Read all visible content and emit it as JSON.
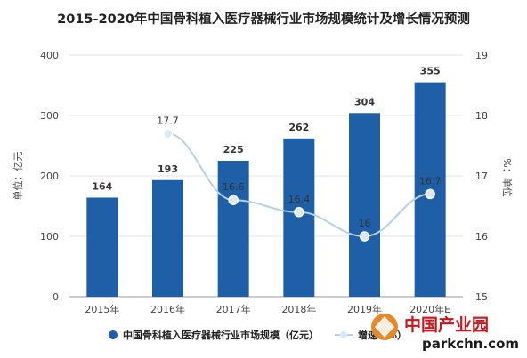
{
  "chart_data": {
    "type": "bar+line",
    "title": "2015-2020年中国骨科植入医疗器械行业市场规模统计及增长情况预测",
    "categories": [
      "2015年",
      "2016年",
      "2017年",
      "2018年",
      "2019年",
      "2020年E"
    ],
    "series": [
      {
        "name": "中国骨科植入医疗器械行业市场规模（亿元）",
        "type": "bar",
        "axis": "left",
        "values": [
          164,
          193,
          225,
          262,
          304,
          355
        ]
      },
      {
        "name": "增速（%）",
        "type": "line",
        "axis": "right",
        "values": [
          null,
          17.7,
          16.6,
          16.4,
          16.0,
          16.7
        ]
      }
    ],
    "ylabel": "单位：亿元",
    "y2label": "%：单位",
    "ylim": [
      0,
      400
    ],
    "y2lim": [
      15,
      19
    ],
    "yticks": [
      "0",
      "100",
      "200",
      "300",
      "400"
    ],
    "y2ticks": [
      "15",
      "16",
      "17",
      "18",
      "19"
    ],
    "legend_position": "bottom",
    "colors": {
      "bar": "#1f5fa8",
      "line": "#b7d0e6",
      "point": "#dce9f5"
    }
  },
  "logo": {
    "text": "中国产业园",
    "url": "parkchn.com"
  }
}
